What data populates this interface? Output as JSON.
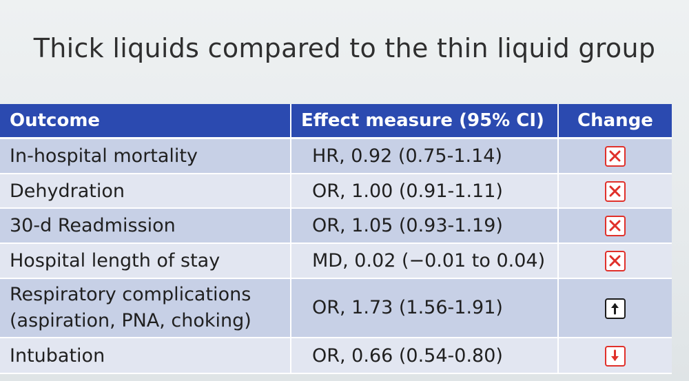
{
  "slide": {
    "title": "Thick liquids compared to the thin liquid group"
  },
  "table": {
    "headers": {
      "outcome": "Outcome",
      "effect": "Effect measure (95% CI)",
      "change": "Change"
    },
    "rows": [
      {
        "outcome": "In-hospital mortality",
        "effect": "HR, 0.92 (0.75-1.14)",
        "change_icon": "x-box-icon",
        "icon_color": "#e0302a"
      },
      {
        "outcome": "Dehydration",
        "effect": "OR, 1.00 (0.91-1.11)",
        "change_icon": "x-box-icon",
        "icon_color": "#e0302a"
      },
      {
        "outcome": "30-d Readmission",
        "effect": "OR, 1.05 (0.93-1.19)",
        "change_icon": "x-box-icon",
        "icon_color": "#e0302a"
      },
      {
        "outcome": "Hospital length of stay",
        "effect": "MD, 0.02 (−0.01 to 0.04)",
        "change_icon": "x-box-icon",
        "icon_color": "#e0302a"
      },
      {
        "outcome_line1": "Respiratory complications",
        "outcome_line2": "(aspiration, PNA, choking)",
        "effect": "OR, 1.73 (1.56-1.91)",
        "change_icon": "arrow-up-box-icon",
        "icon_color": "#1a1a1a"
      },
      {
        "outcome": "Intubation",
        "effect": "OR, 0.66 (0.54-0.80)",
        "change_icon": "arrow-down-box-icon",
        "icon_color": "#e0302a"
      }
    ]
  }
}
